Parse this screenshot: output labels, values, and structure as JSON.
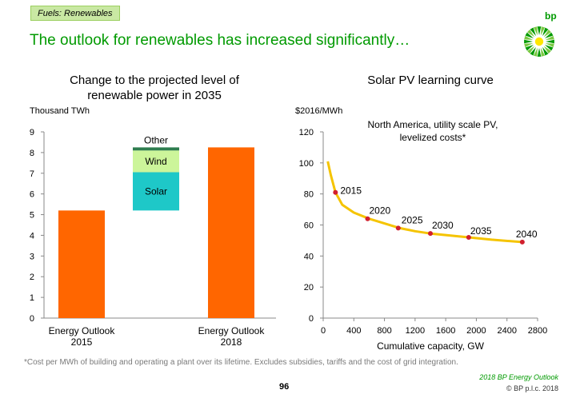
{
  "header": {
    "section_tag": "Fuels: Renewables",
    "headline": "The outlook for renewables has increased significantly…",
    "logo_text": "bp"
  },
  "footer": {
    "footnote": "*Cost per MWh of building and operating a plant over its lifetime. Excludes subsidies, tariffs and the cost of grid integration.",
    "source": "2018 BP Energy Outlook",
    "page_number": "96",
    "copyright": "© BP p.l.c. 2018"
  },
  "colors": {
    "bar": "#ff6600",
    "solar": "#1ec8c8",
    "wind": "#ccf59a",
    "other": "#2e7d4f",
    "curve": "#f5c400",
    "point": "#d11f2e",
    "headline": "#009a00"
  },
  "chart_data": [
    {
      "type": "bar",
      "title": "Change to the projected level of renewable power in 2035",
      "ylabel": "Thousand TWh",
      "categories": [
        "Energy Outlook\n2015",
        "",
        "Energy Outlook\n2018"
      ],
      "ylim": [
        0,
        9
      ],
      "yticks": [
        0,
        1,
        2,
        3,
        4,
        5,
        6,
        7,
        8,
        9
      ],
      "grid": false,
      "series": [
        {
          "values": [
            5.2,
            null,
            8.25
          ]
        }
      ],
      "waterfall": {
        "category_index": 1,
        "base": 5.2,
        "segments": [
          {
            "name": "Solar",
            "value": 1.85
          },
          {
            "name": "Wind",
            "value": 1.05
          },
          {
            "name": "Other",
            "value": 0.15
          }
        ]
      }
    },
    {
      "type": "line",
      "title": "Solar PV learning curve",
      "ylabel": "$2016/MWh",
      "xlabel": "Cumulative capacity, GW",
      "annotation": "North America, utility scale PV,\nlevelized costs*",
      "xlim": [
        0,
        2800
      ],
      "ylim": [
        0,
        120
      ],
      "xticks": [
        0,
        400,
        800,
        1200,
        1600,
        2000,
        2400,
        2800
      ],
      "yticks": [
        0,
        20,
        40,
        60,
        80,
        100,
        120
      ],
      "grid": false,
      "curve": {
        "x": [
          60,
          100,
          160,
          250,
          400,
          600,
          800,
          1000,
          1200,
          1400,
          1600,
          1900,
          2200,
          2600
        ],
        "y": [
          101,
          92,
          81,
          73,
          68,
          64,
          61,
          58,
          56,
          54.5,
          53.5,
          52,
          50.5,
          49
        ]
      },
      "points": [
        {
          "label": "2015",
          "x": 160,
          "y": 81
        },
        {
          "label": "2020",
          "x": 580,
          "y": 64
        },
        {
          "label": "2025",
          "x": 980,
          "y": 58
        },
        {
          "label": "2030",
          "x": 1400,
          "y": 54.5
        },
        {
          "label": "2035",
          "x": 1900,
          "y": 52
        },
        {
          "label": "2040",
          "x": 2600,
          "y": 49
        }
      ]
    }
  ]
}
